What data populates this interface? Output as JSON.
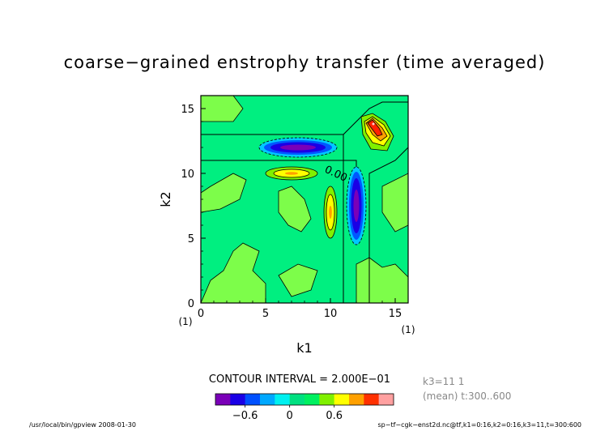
{
  "chart_data": {
    "type": "heatmap",
    "title": "coarse−grained enstrophy transfer (time averaged)",
    "xlabel": "k1",
    "ylabel": "k2",
    "xlim": [
      0,
      16
    ],
    "ylim": [
      0,
      16
    ],
    "x_ticks": [
      "0",
      "5",
      "10",
      "15"
    ],
    "y_ticks": [
      "0",
      "5",
      "10",
      "15"
    ],
    "x_ticks_values": [
      0,
      5,
      10,
      15
    ],
    "y_ticks_values": [
      0,
      5,
      10,
      15
    ],
    "x_unit_marker": "(1)",
    "y_unit_marker": "(1)",
    "contour_label": "0.00",
    "contour_interval_text": "CONTOUR INTERVAL = 2.000E−01",
    "colorbar": {
      "colors": [
        "#7a00b8",
        "#1a00e6",
        "#0050ff",
        "#00a8ff",
        "#00f0f0",
        "#00e080",
        "#00f060",
        "#80f000",
        "#ffff00",
        "#ffa000",
        "#ff3000",
        "#ffa0a0"
      ],
      "tick_labels": [
        "−0.6",
        "0",
        "0.6"
      ],
      "tick_values": [
        -0.6,
        0,
        0.6
      ]
    },
    "features": [
      {
        "name": "negative-lobe",
        "k1": 7.5,
        "k2": 12,
        "min": -1.0
      },
      {
        "name": "negative-lobe",
        "k1": 12,
        "k2": 7.5,
        "min": -1.0
      },
      {
        "name": "positive-lobe",
        "k1": 7,
        "k2": 10,
        "max": 0.6
      },
      {
        "name": "positive-lobe",
        "k1": 10,
        "k2": 7,
        "max": 0.6
      },
      {
        "name": "positive-peak",
        "k1": 13,
        "k2": 13.5,
        "max": 1.2
      }
    ],
    "annotation_right": [
      "k3=11 1",
      "(mean) t:300..600"
    ],
    "footer_left": "/usr/local/bin/gpview  2008-01-30",
    "footer_right": "sp−tf−cgk−enst2d.nc@tf,k1=0:16,k2=0:16,k3=11,t=300:600"
  }
}
